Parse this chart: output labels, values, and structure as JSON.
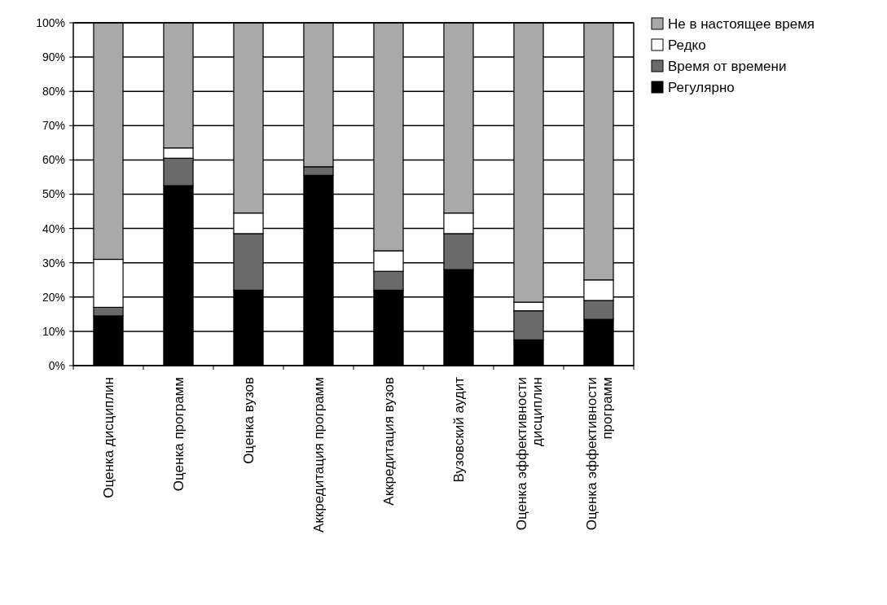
{
  "chart_data": {
    "type": "bar",
    "stacked": true,
    "categories": [
      "Оценка дисциплин",
      "Оценка программ",
      "Оценка вузов",
      "Аккредитация программ",
      "Аккредитация вузов",
      "Вузовский аудит",
      "Оценка эффективности дисциплин",
      "Оценка эффективности программ"
    ],
    "series": [
      {
        "name": "Регулярно",
        "color": "#000000",
        "values": [
          14.5,
          52.5,
          22,
          55.5,
          22,
          28,
          7.5,
          13.5
        ]
      },
      {
        "name": "Время от времени",
        "color": "#6a6a6a",
        "values": [
          2.5,
          8,
          16.5,
          2.5,
          5.5,
          10.5,
          8.5,
          5.5
        ]
      },
      {
        "name": "Редко",
        "color": "#ffffff",
        "values": [
          14,
          3,
          6,
          0,
          6,
          6,
          2.5,
          6
        ]
      },
      {
        "name": "Не в настоящее время",
        "color": "#a9a9a9",
        "values": [
          69,
          36.5,
          55.5,
          42,
          66.5,
          55.5,
          81.5,
          75
        ]
      }
    ],
    "ylim": [
      0,
      100
    ],
    "yticks": [
      {
        "value": 0,
        "label": "0%"
      },
      {
        "value": 10,
        "label": "10%"
      },
      {
        "value": 20,
        "label": "20%"
      },
      {
        "value": 30,
        "label": "30%"
      },
      {
        "value": 40,
        "label": "40%"
      },
      {
        "value": 50,
        "label": "50%"
      },
      {
        "value": 60,
        "label": "60%"
      },
      {
        "value": 70,
        "label": "70%"
      },
      {
        "value": 80,
        "label": "80%"
      },
      {
        "value": 90,
        "label": "90%"
      },
      {
        "value": 100,
        "label": "100%"
      }
    ],
    "grid": "y",
    "legend": "top right"
  }
}
